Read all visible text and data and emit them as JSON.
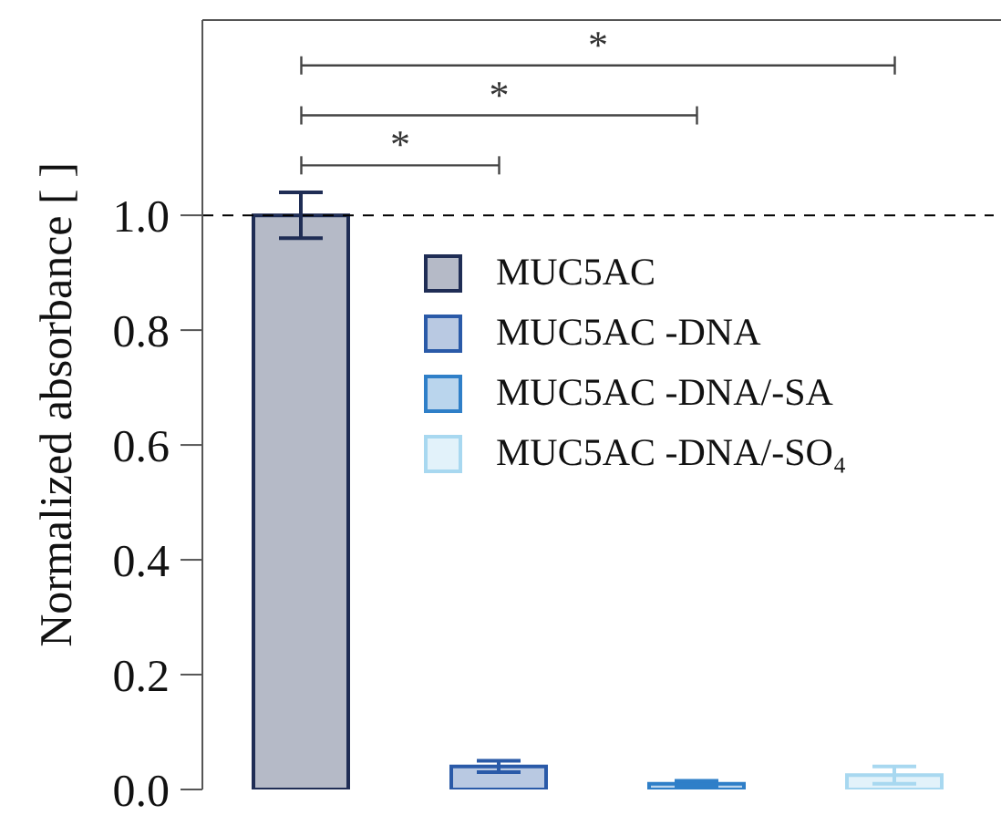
{
  "chart_data": {
    "type": "bar",
    "ylabel": "Normalized absorbance [ ]",
    "categories": [
      null,
      null,
      null,
      null
    ],
    "series": [
      {
        "name": "MUC5AC",
        "color": "#1f2d55",
        "values": [
          1.0,
          null,
          null,
          null
        ],
        "errors": [
          0.04,
          null,
          null,
          null
        ]
      },
      {
        "name": "MUC5AC -DNA",
        "color": "#2a5aa8",
        "values": [
          null,
          0.04,
          null,
          null
        ],
        "errors": [
          null,
          0.01,
          null,
          null
        ]
      },
      {
        "name": "MUC5AC -DNA/-SA",
        "color": "#2f7fc8",
        "values": [
          null,
          null,
          0.01,
          null
        ],
        "errors": [
          null,
          null,
          0.005,
          null
        ]
      },
      {
        "name": "MUC5AC -DNA/-SO₄",
        "color": "#a8d8f0",
        "values": [
          null,
          null,
          null,
          0.025
        ],
        "errors": [
          null,
          null,
          null,
          0.015
        ]
      }
    ],
    "stacked": true,
    "ylim": [
      0,
      1.34
    ],
    "yticks": [
      {
        "value": 0,
        "label": "0.0"
      },
      {
        "value": 0.2,
        "label": "0.2"
      },
      {
        "value": 0.4,
        "label": "0.4"
      },
      {
        "value": 0.6,
        "label": "0.6"
      },
      {
        "value": 0.8,
        "label": "0.8"
      },
      {
        "value": 1,
        "label": "1.0"
      }
    ],
    "tick_labels": "y",
    "ref_lines": [
      {
        "axis": "y",
        "value": 1.0,
        "line_style": "dashed",
        "color": "#000000"
      }
    ],
    "annotations": [
      "*",
      "*",
      "*"
    ],
    "legend": "top right",
    "grid": false
  }
}
